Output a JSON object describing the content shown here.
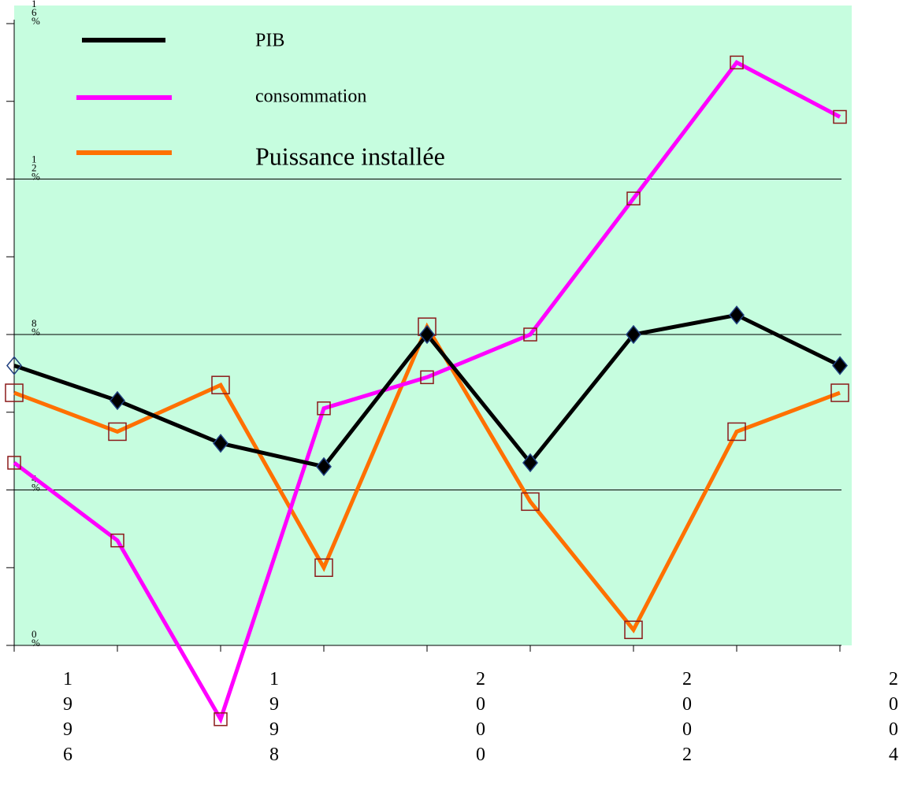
{
  "chart_data": {
    "type": "line",
    "title": "",
    "xlabel": "",
    "ylabel": "",
    "x": [
      1996,
      1997,
      1998,
      1999,
      2000,
      2001,
      2002,
      2003,
      2004
    ],
    "x_tick_labels": [
      "1996",
      "1998",
      "2000",
      "2002",
      "2004"
    ],
    "y_tick_labels": [
      "0%",
      "4%",
      "8%",
      "12%",
      "16%"
    ],
    "ylim": [
      0,
      16
    ],
    "grid": true,
    "legend_position": "top-left",
    "background": "#c6fddf",
    "series": [
      {
        "name": "PIB",
        "color": "#000000",
        "marker": "diamond",
        "values": [
          7.2,
          6.3,
          5.2,
          4.6,
          8.0,
          4.7,
          8.0,
          8.5,
          7.2
        ]
      },
      {
        "name": "consommation",
        "color": "#ff00ff",
        "marker": "square",
        "values": [
          4.7,
          2.7,
          -1.9,
          6.1,
          6.9,
          8.0,
          11.5,
          15.0,
          13.6
        ]
      },
      {
        "name": "Puissance installée",
        "color": "#ff7000",
        "marker": "square",
        "values": [
          6.5,
          5.5,
          6.7,
          2.0,
          8.2,
          3.7,
          0.4,
          5.5,
          6.5
        ]
      }
    ]
  }
}
